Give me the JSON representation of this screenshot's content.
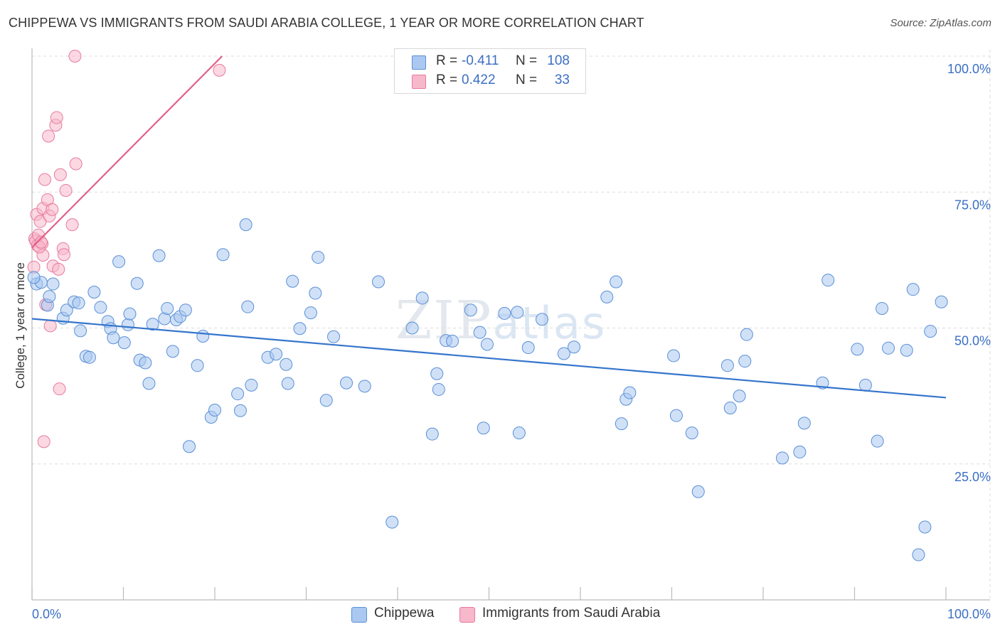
{
  "title": "CHIPPEWA VS IMMIGRANTS FROM SAUDI ARABIA COLLEGE, 1 YEAR OR MORE CORRELATION CHART",
  "source": "Source: ZipAtlas.com",
  "watermark": {
    "zip": "ZIP",
    "atlas": "atlas"
  },
  "legend": {
    "rows": [
      {
        "r_label": "R =",
        "r_value": "-0.411",
        "n_label": "N =",
        "n_value": "108",
        "color": "#aac8f0"
      },
      {
        "r_label": "R =",
        "r_value": "0.422",
        "n_label": "N =",
        "n_value": "33",
        "color": "#f7b8cb"
      }
    ]
  },
  "bottom_legend": {
    "series1": "Chippewa",
    "series2": "Immigrants from Saudi Arabia"
  },
  "chart_data": {
    "type": "scatter",
    "ylabel": "College, 1 year or more",
    "xlabel": "",
    "xlim": [
      0,
      100
    ],
    "ylim": [
      0,
      100
    ],
    "x_tick_labels": [
      "0.0%",
      "100.0%"
    ],
    "y_ticks": [
      25,
      50,
      75,
      100
    ],
    "y_tick_labels": [
      "25.0%",
      "50.0%",
      "75.0%",
      "100.0%"
    ],
    "grid": true,
    "colors": {
      "chippewa_fill": "#aac8f0",
      "chippewa_stroke": "#5b8fd6",
      "chippewa_line": "#3575cc",
      "saudi_fill": "#f7b8cb",
      "saudi_stroke": "#e87aa0",
      "saudi_line": "#e0608a"
    },
    "series": [
      {
        "name": "Chippewa",
        "trend": {
          "x": [
            0,
            100
          ],
          "y": [
            51.7,
            37.2
          ]
        },
        "points": [
          [
            0.5,
            58.1
          ],
          [
            1.0,
            58.4
          ],
          [
            1.7,
            54.2
          ],
          [
            1.9,
            55.8
          ],
          [
            2.3,
            58.1
          ],
          [
            3.4,
            51.8
          ],
          [
            3.8,
            53.3
          ],
          [
            4.6,
            54.8
          ],
          [
            5.1,
            54.6
          ],
          [
            5.3,
            49.5
          ],
          [
            5.9,
            44.8
          ],
          [
            6.3,
            44.6
          ],
          [
            6.8,
            56.6
          ],
          [
            7.5,
            53.8
          ],
          [
            8.3,
            51.2
          ],
          [
            8.6,
            49.9
          ],
          [
            8.9,
            48.2
          ],
          [
            9.5,
            62.2
          ],
          [
            10.1,
            47.3
          ],
          [
            10.5,
            50.6
          ],
          [
            10.7,
            52.6
          ],
          [
            11.5,
            58.2
          ],
          [
            11.8,
            44.1
          ],
          [
            12.4,
            43.6
          ],
          [
            12.8,
            39.8
          ],
          [
            13.2,
            50.7
          ],
          [
            13.9,
            63.3
          ],
          [
            14.5,
            51.7
          ],
          [
            14.8,
            53.6
          ],
          [
            15.4,
            45.7
          ],
          [
            15.8,
            51.5
          ],
          [
            16.2,
            52.1
          ],
          [
            16.8,
            53.3
          ],
          [
            17.2,
            28.2
          ],
          [
            18.1,
            43.1
          ],
          [
            18.7,
            48.5
          ],
          [
            19.6,
            33.6
          ],
          [
            20.0,
            34.9
          ],
          [
            20.9,
            63.5
          ],
          [
            22.5,
            37.9
          ],
          [
            22.8,
            34.8
          ],
          [
            23.4,
            69.0
          ],
          [
            23.6,
            53.9
          ],
          [
            24.0,
            39.5
          ],
          [
            25.8,
            44.6
          ],
          [
            26.7,
            45.2
          ],
          [
            27.8,
            43.3
          ],
          [
            28.0,
            39.8
          ],
          [
            28.5,
            58.6
          ],
          [
            29.3,
            49.9
          ],
          [
            30.5,
            52.8
          ],
          [
            31.0,
            56.4
          ],
          [
            31.3,
            63.0
          ],
          [
            32.2,
            36.7
          ],
          [
            33.0,
            48.4
          ],
          [
            34.4,
            39.9
          ],
          [
            36.4,
            39.3
          ],
          [
            37.9,
            58.5
          ],
          [
            39.4,
            14.3
          ],
          [
            41.6,
            50.0
          ],
          [
            42.7,
            55.5
          ],
          [
            43.8,
            30.5
          ],
          [
            44.3,
            41.6
          ],
          [
            44.5,
            38.7
          ],
          [
            45.3,
            47.7
          ],
          [
            46.0,
            47.6
          ],
          [
            48.0,
            53.3
          ],
          [
            49.0,
            49.2
          ],
          [
            49.4,
            31.6
          ],
          [
            49.8,
            47.0
          ],
          [
            51.7,
            52.7
          ],
          [
            53.1,
            52.9
          ],
          [
            53.3,
            30.7
          ],
          [
            54.3,
            46.4
          ],
          [
            55.8,
            51.6
          ],
          [
            58.2,
            45.3
          ],
          [
            59.3,
            46.5
          ],
          [
            62.9,
            55.7
          ],
          [
            63.9,
            58.5
          ],
          [
            64.5,
            32.4
          ],
          [
            65.0,
            36.9
          ],
          [
            65.4,
            38.1
          ],
          [
            70.2,
            44.9
          ],
          [
            70.5,
            33.9
          ],
          [
            72.2,
            30.7
          ],
          [
            72.9,
            19.9
          ],
          [
            76.1,
            43.1
          ],
          [
            76.4,
            35.3
          ],
          [
            77.4,
            37.5
          ],
          [
            78.0,
            43.9
          ],
          [
            78.2,
            48.8
          ],
          [
            82.1,
            26.1
          ],
          [
            84.0,
            27.2
          ],
          [
            84.5,
            32.5
          ],
          [
            86.5,
            39.9
          ],
          [
            87.1,
            58.8
          ],
          [
            90.3,
            46.1
          ],
          [
            91.2,
            39.5
          ],
          [
            92.5,
            29.2
          ],
          [
            93.0,
            53.6
          ],
          [
            93.7,
            46.3
          ],
          [
            95.7,
            45.9
          ],
          [
            96.4,
            57.1
          ],
          [
            97.0,
            8.3
          ],
          [
            97.7,
            13.4
          ],
          [
            98.3,
            49.4
          ],
          [
            99.5,
            54.8
          ],
          [
            0.2,
            59.3
          ]
        ]
      },
      {
        "name": "Immigrants from Saudi Arabia",
        "trend": {
          "x": [
            0,
            20.8
          ],
          "y": [
            64.8,
            100
          ]
        },
        "points": [
          [
            0.3,
            66.4
          ],
          [
            0.4,
            66.0
          ],
          [
            0.5,
            70.9
          ],
          [
            0.6,
            65.2
          ],
          [
            0.7,
            67.1
          ],
          [
            0.9,
            69.6
          ],
          [
            1.1,
            65.5
          ],
          [
            1.2,
            63.4
          ],
          [
            1.2,
            72.0
          ],
          [
            1.4,
            77.3
          ],
          [
            1.5,
            54.3
          ],
          [
            1.7,
            73.6
          ],
          [
            1.8,
            85.3
          ],
          [
            1.9,
            70.6
          ],
          [
            2.0,
            50.4
          ],
          [
            2.2,
            71.8
          ],
          [
            2.3,
            61.4
          ],
          [
            2.6,
            87.3
          ],
          [
            2.7,
            88.7
          ],
          [
            2.9,
            60.8
          ],
          [
            3.0,
            38.8
          ],
          [
            3.1,
            78.2
          ],
          [
            3.4,
            64.6
          ],
          [
            3.5,
            63.5
          ],
          [
            3.7,
            75.3
          ],
          [
            4.4,
            69.0
          ],
          [
            4.8,
            80.2
          ],
          [
            4.7,
            100.0
          ],
          [
            1.3,
            29.1
          ],
          [
            20.5,
            97.4
          ],
          [
            0.2,
            61.2
          ],
          [
            0.8,
            64.9
          ],
          [
            1.0,
            65.8
          ]
        ]
      }
    ]
  }
}
